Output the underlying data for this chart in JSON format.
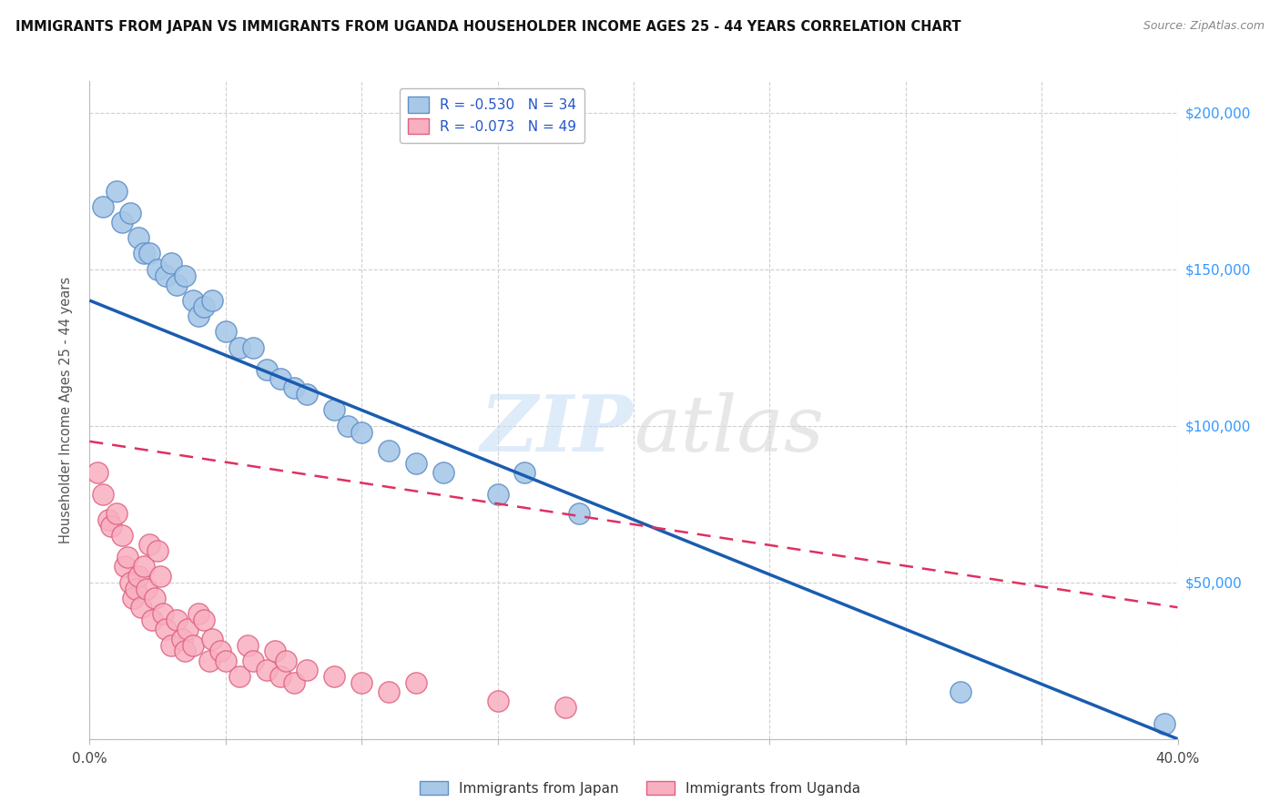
{
  "title": "IMMIGRANTS FROM JAPAN VS IMMIGRANTS FROM UGANDA HOUSEHOLDER INCOME AGES 25 - 44 YEARS CORRELATION CHART",
  "source": "Source: ZipAtlas.com",
  "ylabel": "Householder Income Ages 25 - 44 years",
  "xlim": [
    0.0,
    0.4
  ],
  "ylim": [
    0,
    210000
  ],
  "xticks": [
    0.0,
    0.05,
    0.1,
    0.15,
    0.2,
    0.25,
    0.3,
    0.35,
    0.4
  ],
  "yticks": [
    0,
    50000,
    100000,
    150000,
    200000
  ],
  "yticklabels_right": [
    "",
    "$50,000",
    "$100,000",
    "$150,000",
    "$200,000"
  ],
  "japan_color": "#a8c8e8",
  "uganda_color": "#f8b0c0",
  "japan_edge": "#6090c8",
  "uganda_edge": "#e06080",
  "japan_line_color": "#1a5cb0",
  "uganda_line_color": "#e03060",
  "japan_R": -0.53,
  "japan_N": 34,
  "uganda_R": -0.073,
  "uganda_N": 49,
  "watermark": "ZIPatlas",
  "background_color": "#ffffff",
  "grid_color": "#d0d0d0",
  "japan_x": [
    0.005,
    0.01,
    0.012,
    0.015,
    0.018,
    0.02,
    0.022,
    0.025,
    0.028,
    0.03,
    0.032,
    0.035,
    0.038,
    0.04,
    0.042,
    0.045,
    0.05,
    0.055,
    0.06,
    0.065,
    0.07,
    0.075,
    0.08,
    0.09,
    0.095,
    0.1,
    0.11,
    0.12,
    0.13,
    0.15,
    0.16,
    0.18,
    0.32,
    0.395
  ],
  "japan_y": [
    170000,
    175000,
    165000,
    168000,
    160000,
    155000,
    155000,
    150000,
    148000,
    152000,
    145000,
    148000,
    140000,
    135000,
    138000,
    140000,
    130000,
    125000,
    125000,
    118000,
    115000,
    112000,
    110000,
    105000,
    100000,
    98000,
    92000,
    88000,
    85000,
    78000,
    85000,
    72000,
    15000,
    5000
  ],
  "uganda_x": [
    0.003,
    0.005,
    0.007,
    0.008,
    0.01,
    0.012,
    0.013,
    0.014,
    0.015,
    0.016,
    0.017,
    0.018,
    0.019,
    0.02,
    0.021,
    0.022,
    0.023,
    0.024,
    0.025,
    0.026,
    0.027,
    0.028,
    0.03,
    0.032,
    0.034,
    0.035,
    0.036,
    0.038,
    0.04,
    0.042,
    0.044,
    0.045,
    0.048,
    0.05,
    0.055,
    0.058,
    0.06,
    0.065,
    0.068,
    0.07,
    0.072,
    0.075,
    0.08,
    0.09,
    0.1,
    0.11,
    0.12,
    0.15,
    0.175
  ],
  "uganda_y": [
    85000,
    78000,
    70000,
    68000,
    72000,
    65000,
    55000,
    58000,
    50000,
    45000,
    48000,
    52000,
    42000,
    55000,
    48000,
    62000,
    38000,
    45000,
    60000,
    52000,
    40000,
    35000,
    30000,
    38000,
    32000,
    28000,
    35000,
    30000,
    40000,
    38000,
    25000,
    32000,
    28000,
    25000,
    20000,
    30000,
    25000,
    22000,
    28000,
    20000,
    25000,
    18000,
    22000,
    20000,
    18000,
    15000,
    18000,
    12000,
    10000
  ],
  "japan_line_x0": 0.0,
  "japan_line_y0": 140000,
  "japan_line_x1": 0.4,
  "japan_line_y1": 0,
  "uganda_line_x0": 0.0,
  "uganda_line_y0": 95000,
  "uganda_line_x1": 0.4,
  "uganda_line_y1": 42000
}
